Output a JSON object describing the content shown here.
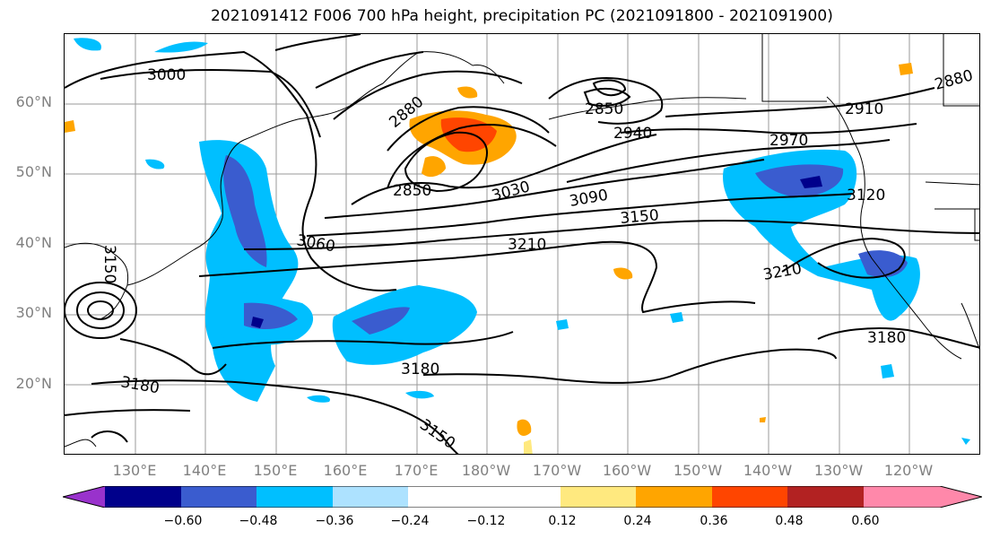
{
  "title": "2021091412 F006 700 hPa height, precipitation PC (2021091800 - 2021091900)",
  "lat_labels": [
    "60°N",
    "50°N",
    "40°N",
    "30°N",
    "20°N"
  ],
  "lon_labels": [
    "130°E",
    "140°E",
    "150°E",
    "160°E",
    "170°E",
    "180°W",
    "170°W",
    "160°W",
    "150°W",
    "140°W",
    "130°W",
    "120°W"
  ],
  "contour_labels": [
    "3000",
    "2880",
    "2850",
    "2850",
    "2940",
    "2910",
    "2880",
    "2970",
    "3030",
    "3090",
    "3150",
    "3120",
    "3060",
    "3210",
    "3210",
    "3180",
    "3180",
    "3180",
    "3150",
    "3150"
  ],
  "colorbar": {
    "ticks": [
      "−0.60",
      "−0.48",
      "−0.36",
      "−0.24",
      "−0.12",
      "0.12",
      "0.24",
      "0.36",
      "0.48",
      "0.60"
    ],
    "colors": [
      "#9932CC",
      "#00008B",
      "#3A5CCF",
      "#00BFFF",
      "#ADE2FF",
      "#FFFFFF",
      "#FFE97F",
      "#FFA500",
      "#FF4500",
      "#B22222",
      "#FF88AA"
    ]
  }
}
